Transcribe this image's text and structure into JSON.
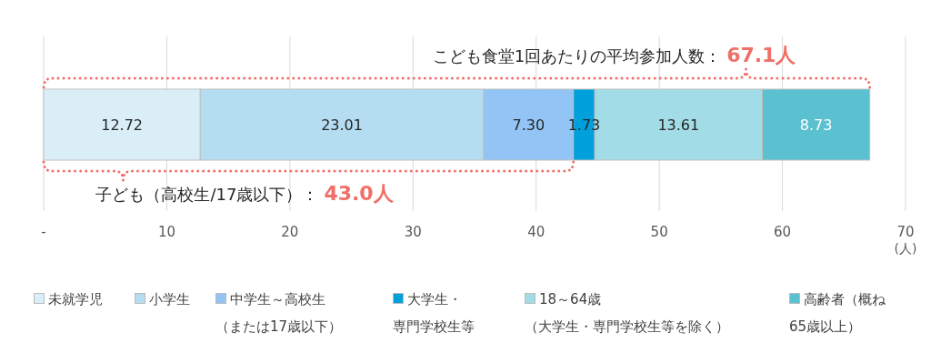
{
  "chart_data": {
    "type": "bar",
    "orientation": "horizontal",
    "stacked": true,
    "categories": [
      null
    ],
    "series": [
      {
        "name": "未就学児",
        "color": "#daeef8",
        "values": [
          12.72
        ],
        "value_labels": [
          "12.72"
        ]
      },
      {
        "name": "小学生",
        "color": "#b4ddf2",
        "values": [
          23.01
        ],
        "value_labels": [
          "23.01"
        ]
      },
      {
        "name": "中学生～高校生（または17歳以下）",
        "color": "#92c5f5",
        "values": [
          7.3
        ],
        "value_labels": [
          "7.30"
        ]
      },
      {
        "name": "大学生・専門学校生等",
        "color": "#00a0dc",
        "values": [
          1.73
        ],
        "value_labels": [
          "1.73"
        ]
      },
      {
        "name": "18～64歳（大学生・専門学校生等を除く）",
        "color": "#a2dce6",
        "values": [
          13.61
        ],
        "value_labels": [
          "13.61"
        ]
      },
      {
        "name": "高齢者（概ね65歳以上）",
        "color": "#5bc1d0",
        "values": [
          8.73
        ],
        "value_labels": [
          "8.73"
        ]
      }
    ],
    "xlim": [
      0,
      70
    ],
    "xticks": [
      {
        "value": 0,
        "label": "-"
      },
      10,
      20,
      30,
      40,
      50,
      60,
      70
    ],
    "xlabel": "(人)",
    "grid": "x",
    "legend": "bottom",
    "annotations": [
      "こども食堂1回あたりの平均参加人数：**67.1人**",
      "子ども（高校生/17歳以下）：**43.0人**"
    ]
  }
}
